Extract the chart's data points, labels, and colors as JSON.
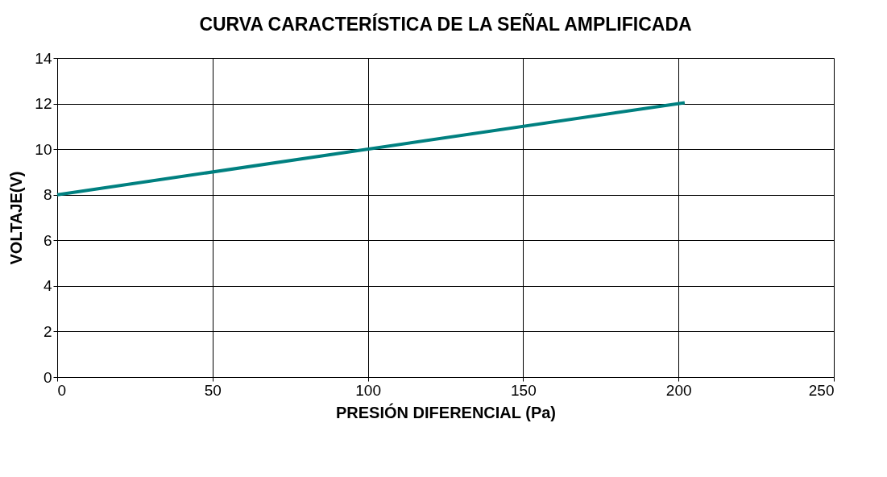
{
  "chart_data": {
    "type": "line",
    "title": "CURVA CARACTERÍSTICA DE LA SEÑAL  AMPLIFICADA",
    "xlabel": "PRESIÓN DIFERENCIAL (Pa)",
    "ylabel": "VOLTAJE(V)",
    "x": [
      0,
      202
    ],
    "series": [
      {
        "color": "#008080",
        "values": [
          8,
          12.04
        ]
      }
    ],
    "xlim": [
      0,
      250
    ],
    "xticks": [
      0,
      50,
      100,
      150,
      200,
      250
    ],
    "ylim": [
      0,
      14
    ],
    "yticks": [
      0,
      2,
      4,
      6,
      8,
      10,
      12,
      14
    ],
    "grid": true,
    "legend": false,
    "marker": "none",
    "line_style": "solid"
  }
}
